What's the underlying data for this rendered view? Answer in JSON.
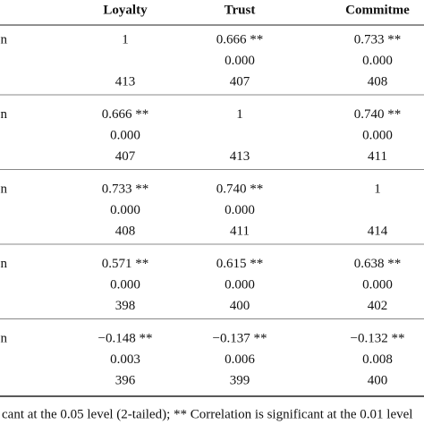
{
  "table": {
    "header": [
      "Loyalty",
      "Trust",
      "Commitme"
    ],
    "rows": [
      {
        "label": "n",
        "cells": [
          {
            "r": "1",
            "n": "413"
          },
          {
            "r": "0.666 **",
            "p": "0.000",
            "n": "407"
          },
          {
            "r": "0.733 **",
            "p": "0.000",
            "n": "408"
          }
        ]
      },
      {
        "label": "n",
        "cells": [
          {
            "r": "0.666 **",
            "p": "0.000",
            "n": "407"
          },
          {
            "r": "1",
            "n": "413"
          },
          {
            "r": "0.740 **",
            "p": "0.000",
            "n": "411"
          }
        ]
      },
      {
        "label": "n",
        "cells": [
          {
            "r": "0.733 **",
            "p": "0.000",
            "n": "408"
          },
          {
            "r": "0.740 **",
            "p": "0.000",
            "n": "411"
          },
          {
            "r": "1",
            "n": "414"
          }
        ]
      },
      {
        "label": "n",
        "cells": [
          {
            "r": "0.571 **",
            "p": "0.000",
            "n": "398"
          },
          {
            "r": "0.615 **",
            "p": "0.000",
            "n": "400"
          },
          {
            "r": "0.638 **",
            "p": "0.000",
            "n": "402"
          }
        ]
      },
      {
        "label": "n",
        "cells": [
          {
            "r": "−0.148 **",
            "p": "0.003",
            "n": "396"
          },
          {
            "r": "−0.137 **",
            "p": "0.006",
            "n": "399"
          },
          {
            "r": "−0.132 **",
            "p": "0.008",
            "n": "400"
          }
        ]
      }
    ],
    "footnote": "cant at the 0.05 level (2-tailed); ** Correlation is significant at the 0.01 level"
  }
}
